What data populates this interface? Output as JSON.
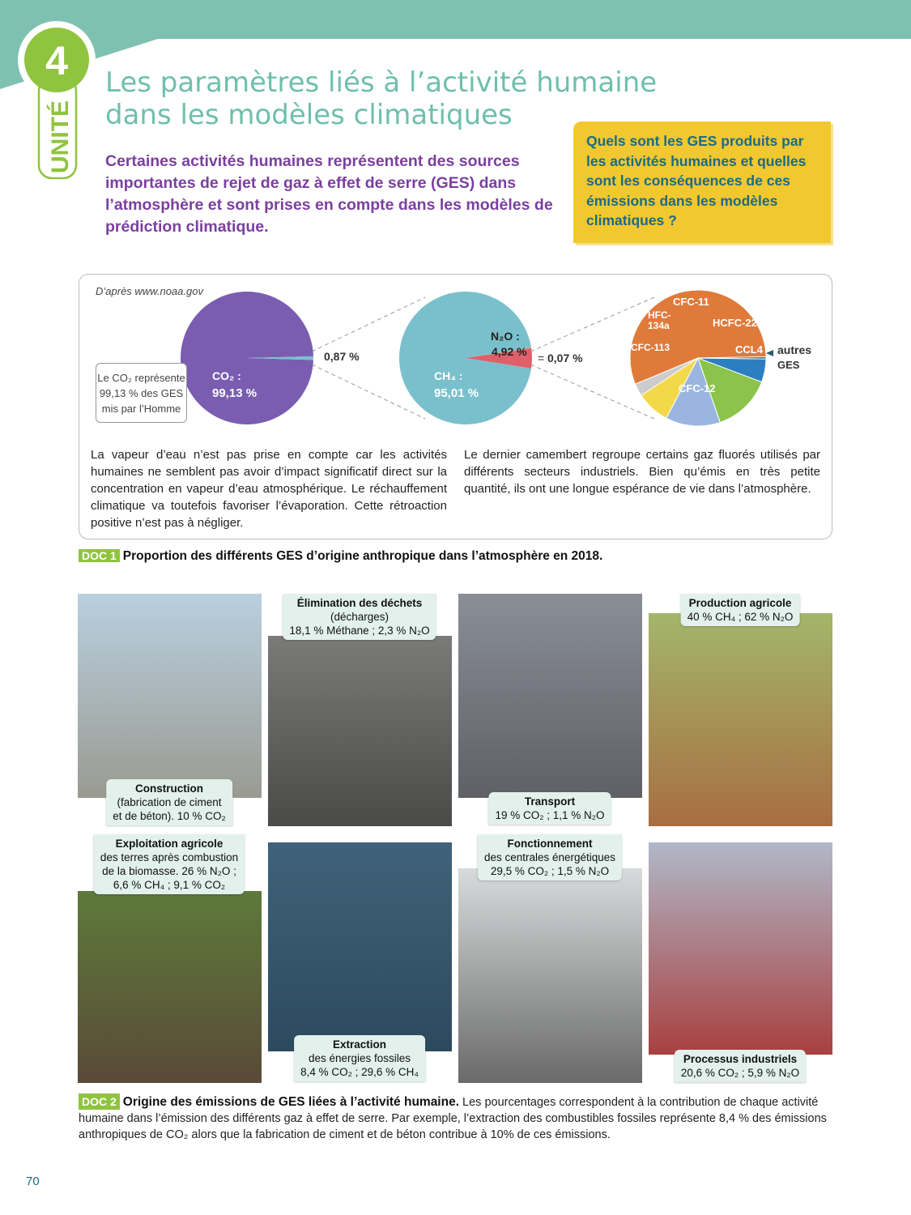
{
  "unit": {
    "label": "UNITÉ",
    "number": "4"
  },
  "title": {
    "line1": "Les paramètres liés à l’activité humaine",
    "line2": "dans les modèles climatiques"
  },
  "intro": "Certaines activités humaines représentent des sources importantes de rejet de gaz à effet de serre (GES) dans l’atmosphère et sont prises en compte dans les modèles de prédiction climatique.",
  "question": "Quels sont les GES produits par les activités humaines et quelles sont les conséquences de ces émissions dans les modèles climatiques ?",
  "doc1": {
    "source": "D’après www.noaa.gov",
    "co2_note": [
      "Le CO₂ représente",
      "99,13 % des GES",
      "mis par l’Homme"
    ],
    "paragraph_left": "La vapeur d’eau n’est pas prise en compte car les activités humaines ne semblent pas avoir d’impact significatif direct sur la concentration en vapeur d’eau atmosphérique. Le réchauffement climatique va toutefois favoriser l’évaporation. Cette rétroaction positive n’est pas à négliger.",
    "paragraph_right": "Le dernier camembert regroupe certains gaz fluorés utilisés par différents secteurs industriels. Bien qu’émis en très petite quantité, ils ont une longue espérance de vie dans l’atmosphère.",
    "tag": "DOC 1",
    "caption": "Proportion des différents GES d’origine anthropique dans l’atmosphère en 2018."
  },
  "chart_data": [
    {
      "type": "pie",
      "slices": [
        {
          "label": "CO₂ : 99,13 %",
          "value": 99.13,
          "color": "#7a5db0"
        },
        {
          "label": "0,87 %",
          "value": 0.87,
          "color": "#79c0cc"
        }
      ]
    },
    {
      "type": "pie",
      "slices": [
        {
          "label": "CH₄ : 95,01 %",
          "value": 95.01,
          "color": "#79c0cc"
        },
        {
          "label": "N₂O : 4,92 %",
          "value": 4.92,
          "color": "#e0606a"
        },
        {
          "label": "0,07 %",
          "value": 0.07,
          "color": "#f0d040"
        }
      ]
    },
    {
      "type": "pie",
      "slices": [
        {
          "label": "CFC-12",
          "value": 56,
          "color": "#e07a3a"
        },
        {
          "label": "CFC-113",
          "value": 3,
          "color": "#cccccc"
        },
        {
          "label": "HFC-134a",
          "value": 8,
          "color": "#f3d84a"
        },
        {
          "label": "CFC-11",
          "value": 13,
          "color": "#9ab6e0"
        },
        {
          "label": "HCFC-22",
          "value": 14,
          "color": "#8cc34a"
        },
        {
          "label": "CCL4",
          "value": 5.5,
          "color": "#2b7fc0"
        },
        {
          "label": "autres GES",
          "value": 0.5,
          "color": "#2a5a70"
        }
      ]
    }
  ],
  "photos": [
    {
      "label": [
        "Construction",
        "(fabrication de ciment",
        "et de béton). 10 % CO₂"
      ],
      "colors": [
        "#b9d0df",
        "#9a9a92"
      ]
    },
    {
      "label": [
        "Élimination des déchets",
        "(décharges)",
        "18,1 % Méthane ; 2,3 % N₂O"
      ],
      "colors": [
        "#7a7a78",
        "#4a4a48"
      ]
    },
    {
      "label": [
        "Transport",
        "19 % CO₂ ; 1,1 % N₂O"
      ],
      "colors": [
        "#8a8e96",
        "#5e6066"
      ]
    },
    {
      "label": [
        "Production agricole",
        "40 % CH₄ ; 62 % N₂O"
      ],
      "colors": [
        "#a3b66a",
        "#a86e40"
      ]
    },
    {
      "label": [
        "Exploitation agricole",
        "des terres après combustion",
        "de la biomasse. 26 % N₂O ;",
        "6,6 % CH₄ ; 9,1 % CO₂"
      ],
      "colors": [
        "#5d7a3a",
        "#5a4a38"
      ]
    },
    {
      "label": [
        "Extraction",
        "des énergies fossiles",
        "8,4 % CO₂ ; 29,6 % CH₄"
      ],
      "colors": [
        "#40627a",
        "#2c4a5e"
      ]
    },
    {
      "label": [
        "Fonctionnement",
        "des centrales énergétiques",
        "29,5 % CO₂ ; 1,5 % N₂O"
      ],
      "colors": [
        "#d8dbdc",
        "#6a6a6a"
      ]
    },
    {
      "label": [
        "Processus industriels",
        "20,6 % CO₂ ; 5,9 % N₂O"
      ],
      "colors": [
        "#b0b8c8",
        "#a84040"
      ]
    }
  ],
  "doc2": {
    "tag": "DOC 2",
    "caption_bold": "Origine des émissions de GES liées à l’activité humaine.",
    "caption": " Les pourcentages correspondent à la contribution de chaque activité humaine dans l’émission des différents gaz à effet de serre. Par exemple, l’extraction des combustibles fossiles représente 8,4 % des émissions anthropiques de CO₂ alors que la fabrication de ciment et de béton contribue à 10% de ces émissions."
  },
  "page_number": "70",
  "colors": {
    "teal": "#7fc1b0",
    "green": "#8fc43f",
    "purple": "#7b3fa0",
    "yellow": "#f2c830"
  }
}
